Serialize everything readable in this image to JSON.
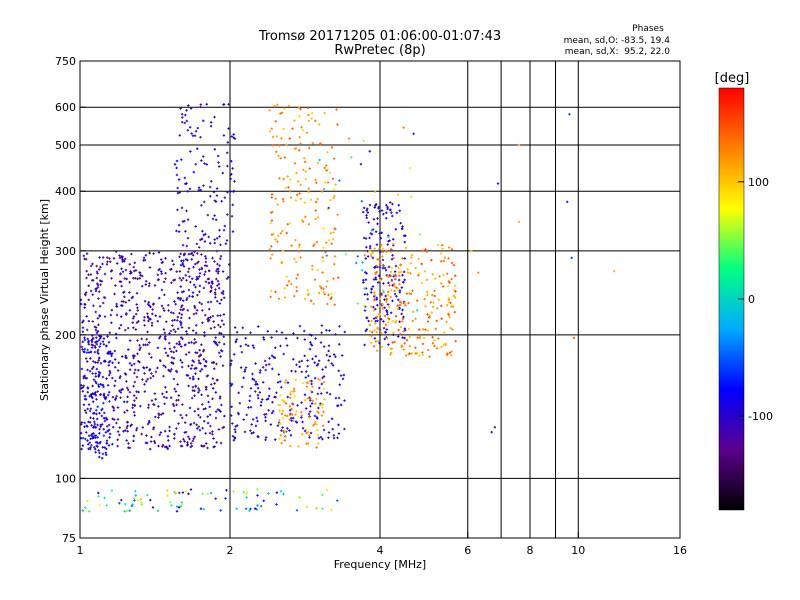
{
  "chart_data": {
    "type": "scatter",
    "title": "Tromsø 20171205 01:06:00-01:07:43",
    "subtitle": "RwPretec (8p)",
    "xlabel": "Frequency [MHz]",
    "ylabel": "Stationary phase Virtual Height [km]",
    "x_scale": "log",
    "y_scale": "log",
    "xlim": [
      1,
      16
    ],
    "ylim": [
      75,
      750
    ],
    "x_ticks": [
      1,
      2,
      4,
      6,
      8,
      10,
      16
    ],
    "y_ticks": [
      75,
      100,
      200,
      300,
      400,
      500,
      600,
      750
    ],
    "x_gridlines": [
      2,
      4,
      6,
      7,
      8,
      9,
      10
    ],
    "y_gridlines": [
      100,
      200,
      300,
      400,
      500,
      600
    ],
    "grid": true,
    "stats": {
      "heading": "Phases",
      "o_line": "mean, sd,O: -83.5, 19.4",
      "x_line": "mean, sd,X:  95.2, 22.0"
    },
    "colorbar": {
      "label": "[deg]",
      "range": [
        -180,
        180
      ],
      "ticks": [
        100,
        0,
        -100
      ],
      "colors": [
        "#000000",
        "#5a008c",
        "#0000ff",
        "#00aaff",
        "#00ff80",
        "#ffff00",
        "#ff8000",
        "#ff0000"
      ]
    },
    "clusters": [
      {
        "x": [
          1.0,
          1.95
        ],
        "y": [
          115,
          300
        ],
        "phase": [
          -140,
          -85
        ],
        "n": 900
      },
      {
        "x": [
          1.0,
          1.15
        ],
        "y": [
          110,
          200
        ],
        "phase": [
          -110,
          -60
        ],
        "n": 160
      },
      {
        "x": [
          1.55,
          2.05
        ],
        "y": [
          250,
          610
        ],
        "phase": [
          -130,
          -80
        ],
        "n": 160
      },
      {
        "x": [
          2.0,
          3.4
        ],
        "y": [
          120,
          210
        ],
        "phase": [
          -125,
          -70
        ],
        "n": 260
      },
      {
        "x": [
          2.4,
          3.3
        ],
        "y": [
          230,
          620
        ],
        "phase": [
          90,
          150
        ],
        "n": 200
      },
      {
        "x": [
          2.5,
          3.1
        ],
        "y": [
          115,
          165
        ],
        "phase": [
          90,
          140
        ],
        "n": 90
      },
      {
        "x": [
          3.7,
          4.5
        ],
        "y": [
          190,
          380
        ],
        "phase": [
          -120,
          -75
        ],
        "n": 180
      },
      {
        "x": [
          3.8,
          5.7
        ],
        "y": [
          180,
          310
        ],
        "phase": [
          95,
          155
        ],
        "n": 260
      },
      {
        "x": [
          1.0,
          3.3
        ],
        "y": [
          85,
          95
        ],
        "phase": [
          -110,
          120
        ],
        "n": 90
      },
      {
        "x": [
          3.0,
          4.9
        ],
        "y": [
          220,
          560
        ],
        "phase": [
          -100,
          130
        ],
        "n": 40
      }
    ],
    "isolated_points": [
      {
        "x": 6.8,
        "y": 128,
        "phase": -90
      },
      {
        "x": 6.7,
        "y": 125,
        "phase": -110
      },
      {
        "x": 6.9,
        "y": 415,
        "phase": -120
      },
      {
        "x": 7.6,
        "y": 500,
        "phase": 120
      },
      {
        "x": 7.6,
        "y": 345,
        "phase": 110
      },
      {
        "x": 9.6,
        "y": 580,
        "phase": -60
      },
      {
        "x": 9.5,
        "y": 380,
        "phase": -70
      },
      {
        "x": 9.7,
        "y": 290,
        "phase": -60
      },
      {
        "x": 9.8,
        "y": 197,
        "phase": 150
      },
      {
        "x": 11.8,
        "y": 272,
        "phase": 110
      },
      {
        "x": 6.1,
        "y": 300,
        "phase": 110
      },
      {
        "x": 6.3,
        "y": 270,
        "phase": 120
      }
    ]
  }
}
